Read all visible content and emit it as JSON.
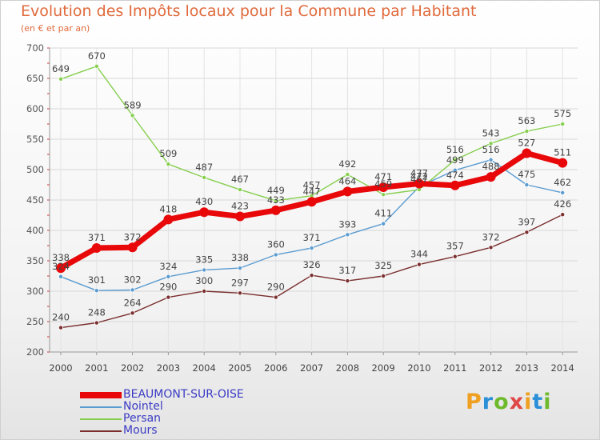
{
  "header": {
    "title": "Evolution des Impôts locaux pour la Commune par Habitant",
    "subtitle": "(en € et par an)"
  },
  "logo": {
    "text": "Proxiti",
    "colors": [
      "#f0a020",
      "#2a8fd8",
      "#6fba2c",
      "#e04848",
      "#f0a020",
      "#2a8fd8",
      "#6fba2c"
    ]
  },
  "chart_data": {
    "type": "line",
    "categories": [
      "2000",
      "2001",
      "2002",
      "2003",
      "2004",
      "2005",
      "2006",
      "2007",
      "2008",
      "2009",
      "2010",
      "2011",
      "2012",
      "2013",
      "2014"
    ],
    "ylim": [
      200,
      700
    ],
    "yticks": [
      200,
      250,
      300,
      350,
      400,
      450,
      500,
      550,
      600,
      650,
      700
    ],
    "grid": true,
    "legend_position": "bottom-left",
    "series": [
      {
        "name": "Mours",
        "color": "#7a2e2e",
        "values": [
          240,
          248,
          264,
          290,
          300,
          297,
          290,
          326,
          317,
          325,
          344,
          357,
          372,
          397,
          426
        ],
        "labels_above": true
      },
      {
        "name": "Nointel",
        "color": "#5a9bd0",
        "values": [
          324,
          301,
          302,
          324,
          335,
          338,
          360,
          371,
          393,
          411,
          472,
          499,
          516,
          475,
          462
        ],
        "labels_above": true
      },
      {
        "name": "Persan",
        "color": "#86cf4e",
        "values": [
          649,
          670,
          589,
          509,
          487,
          467,
          449,
          457,
          492,
          459,
          467,
          516,
          543,
          563,
          575
        ],
        "labels_above": true
      },
      {
        "name": "BEAUMONT-SUR-OISE",
        "color": "#e8080a",
        "values": [
          338,
          371,
          372,
          418,
          430,
          423,
          433,
          447,
          464,
          471,
          477,
          474,
          488,
          527,
          511
        ],
        "labels_above": true,
        "bold": true
      }
    ],
    "legend_order": [
      "BEAUMONT-SUR-OISE",
      "Nointel",
      "Persan",
      "Mours"
    ]
  }
}
